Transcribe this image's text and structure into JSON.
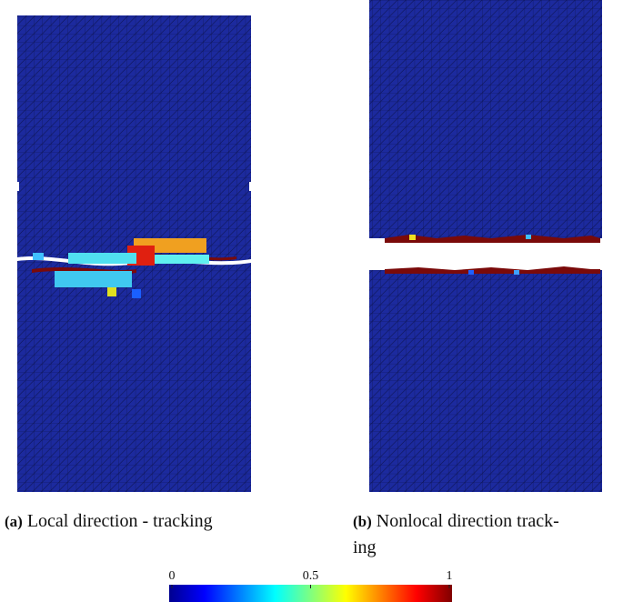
{
  "captions": [
    {
      "label": "(a)",
      "lines": [
        "Local direction - tracking"
      ]
    },
    {
      "label": "(b)",
      "lines": [
        "Nonlocal direction track-",
        "ing"
      ]
    }
  ],
  "colorbar": {
    "lim": [
      0,
      1
    ],
    "ticks": [
      0,
      0.5,
      1
    ]
  }
}
